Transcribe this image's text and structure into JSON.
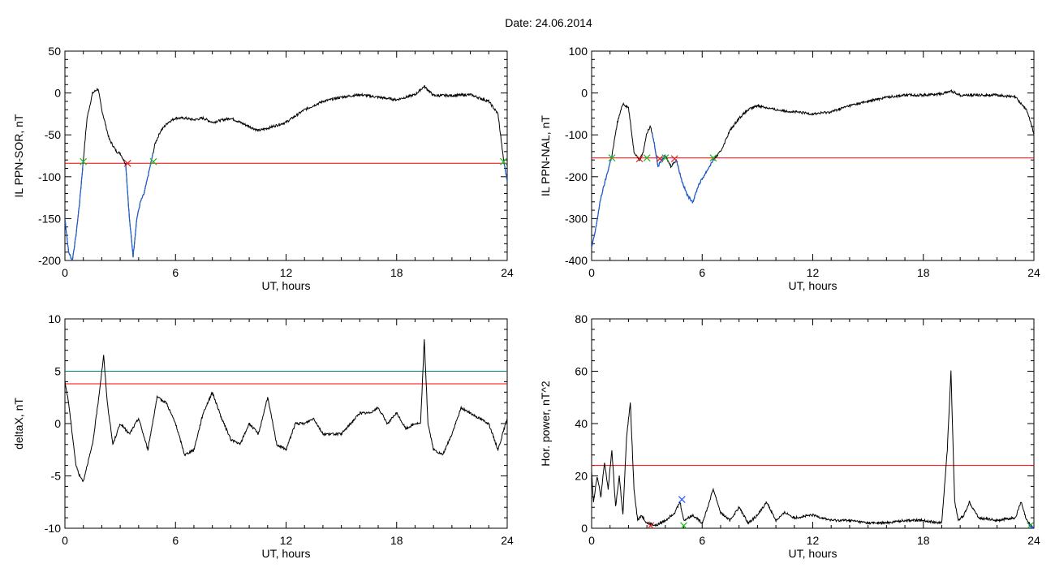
{
  "title": "Date:  24.06.2014",
  "colors": {
    "line": "#000000",
    "threshold": "#ff0000",
    "threshold2": "#008080",
    "highlight": "#1f5fcf",
    "mark_green": "#22bb22",
    "mark_red": "#dd2222",
    "mark_blue": "#2255ff"
  },
  "chart_data": [
    {
      "type": "line",
      "xlabel": "UT, hours",
      "ylabel": "IL PPN-SOR, nT",
      "xlim": [
        0,
        24
      ],
      "ylim": [
        -200,
        50
      ],
      "xticks": [
        0,
        6,
        12,
        18,
        24
      ],
      "xtick_labels": [
        "0",
        "6",
        "12",
        "18",
        "24"
      ],
      "yticks": [
        -200,
        -150,
        -100,
        -50,
        0,
        50
      ],
      "ytick_labels": [
        "-200",
        "-150",
        "-100",
        "-50",
        "0",
        "50"
      ],
      "thresholds": [
        {
          "y": -84,
          "color": "#ff0000"
        }
      ],
      "series": [
        {
          "x": [
            0,
            0.2,
            0.4,
            0.6,
            0.8,
            1.0,
            1.2,
            1.5,
            1.8,
            2.0,
            2.4,
            2.8,
            3.0,
            3.3,
            3.5,
            3.7,
            3.9,
            4.1,
            4.3,
            4.5,
            4.7,
            4.9,
            5.2,
            5.6,
            6.0,
            6.5,
            7.0,
            7.5,
            8.0,
            9.0,
            10.0,
            10.5,
            11.0,
            12.0,
            13.0,
            14.0,
            15.0,
            16.0,
            17.0,
            18.0,
            19.0,
            19.5,
            20.0,
            21.0,
            22.0,
            23.0,
            23.5,
            23.8,
            24.0
          ],
          "y": [
            -150,
            -190,
            -200,
            -170,
            -130,
            -80,
            -30,
            0,
            5,
            -20,
            -55,
            -70,
            -72,
            -85,
            -150,
            -195,
            -150,
            -130,
            -120,
            -100,
            -80,
            -60,
            -45,
            -35,
            -30,
            -30,
            -32,
            -30,
            -35,
            -30,
            -40,
            -45,
            -42,
            -35,
            -20,
            -10,
            -5,
            -2,
            -5,
            -8,
            -2,
            8,
            -3,
            -3,
            -2,
            -10,
            -25,
            -80,
            -105
          ]
        }
      ],
      "marks": [
        {
          "x": 1.0,
          "y": -82,
          "color": "#22bb22"
        },
        {
          "x": 3.4,
          "y": -84,
          "color": "#dd2222"
        },
        {
          "x": 4.8,
          "y": -82,
          "color": "#22bb22"
        },
        {
          "x": 23.8,
          "y": -82,
          "color": "#22bb22"
        }
      ],
      "highlight": [
        [
          0,
          1.0
        ],
        [
          3.3,
          4.8
        ],
        [
          23.8,
          24
        ]
      ]
    },
    {
      "type": "line",
      "xlabel": "UT, hours",
      "ylabel": "IL PPN-NAL, nT",
      "xlim": [
        0,
        24
      ],
      "ylim": [
        -400,
        100
      ],
      "xticks": [
        0,
        6,
        12,
        18,
        24
      ],
      "xtick_labels": [
        "0",
        "6",
        "12",
        "18",
        "24"
      ],
      "yticks": [
        -400,
        -300,
        -200,
        -100,
        0,
        100
      ],
      "ytick_labels": [
        "-400",
        "-300",
        "-200",
        "-100",
        "0",
        "100"
      ],
      "thresholds": [
        {
          "y": -155,
          "color": "#ff0000"
        }
      ],
      "series": [
        {
          "x": [
            0,
            0.2,
            0.5,
            0.8,
            1.1,
            1.4,
            1.7,
            2.0,
            2.3,
            2.6,
            2.8,
            3.0,
            3.2,
            3.4,
            3.6,
            3.8,
            4.0,
            4.3,
            4.6,
            4.9,
            5.2,
            5.5,
            5.8,
            6.2,
            6.6,
            7.0,
            7.5,
            8.0,
            8.5,
            9.0,
            10.0,
            11.0,
            12.0,
            13.0,
            14.0,
            15.0,
            16.0,
            17.0,
            18.0,
            19.0,
            19.5,
            20.0,
            21.0,
            22.0,
            23.0,
            23.6,
            23.9,
            24.0
          ],
          "y": [
            -370,
            -330,
            -250,
            -200,
            -150,
            -70,
            -25,
            -35,
            -140,
            -160,
            -140,
            -95,
            -80,
            -120,
            -175,
            -160,
            -150,
            -175,
            -160,
            -210,
            -245,
            -260,
            -220,
            -190,
            -160,
            -140,
            -90,
            -60,
            -40,
            -30,
            -40,
            -45,
            -50,
            -45,
            -30,
            -20,
            -10,
            -5,
            -5,
            -2,
            5,
            -5,
            -5,
            -5,
            -10,
            -40,
            -80,
            -100
          ]
        }
      ],
      "marks": [
        {
          "x": 1.1,
          "y": -155,
          "color": "#22bb22"
        },
        {
          "x": 2.6,
          "y": -157,
          "color": "#dd2222"
        },
        {
          "x": 3.0,
          "y": -155,
          "color": "#22bb22"
        },
        {
          "x": 3.7,
          "y": -157,
          "color": "#dd2222"
        },
        {
          "x": 4.0,
          "y": -155,
          "color": "#22bb22"
        },
        {
          "x": 4.5,
          "y": -157,
          "color": "#dd2222"
        },
        {
          "x": 6.6,
          "y": -155,
          "color": "#22bb22"
        }
      ],
      "highlight": [
        [
          0,
          1.1
        ],
        [
          3.3,
          4.0
        ],
        [
          4.5,
          6.6
        ]
      ]
    },
    {
      "type": "line",
      "xlabel": "UT, hours",
      "ylabel": "deltaX, nT",
      "xlim": [
        0,
        24
      ],
      "ylim": [
        -10,
        10
      ],
      "xticks": [
        0,
        6,
        12,
        18,
        24
      ],
      "xtick_labels": [
        "0",
        "6",
        "12",
        "18",
        "24"
      ],
      "yticks": [
        -10,
        -5,
        0,
        5,
        10
      ],
      "ytick_labels": [
        "-10",
        "-5",
        "0",
        "5",
        "10"
      ],
      "thresholds": [
        {
          "y": 5.0,
          "color": "#008080"
        },
        {
          "y": 3.8,
          "color": "#ff0000"
        }
      ],
      "series": [
        {
          "x": [
            0,
            0.2,
            0.4,
            0.6,
            0.8,
            1.0,
            1.2,
            1.5,
            1.8,
            2.1,
            2.3,
            2.6,
            3.0,
            3.5,
            4.0,
            4.5,
            5.0,
            5.5,
            6.0,
            6.5,
            7.0,
            7.5,
            8.0,
            8.5,
            9.0,
            9.5,
            10.0,
            10.5,
            11.0,
            11.5,
            12.0,
            12.5,
            13.0,
            13.5,
            14.0,
            14.5,
            15.0,
            15.5,
            16.0,
            16.5,
            17.0,
            17.5,
            18.0,
            18.5,
            19.0,
            19.3,
            19.5,
            19.7,
            20.0,
            20.5,
            21.0,
            21.5,
            22.0,
            22.5,
            23.0,
            23.5,
            24.0
          ],
          "y": [
            4,
            2,
            -1,
            -4,
            -5,
            -5.5,
            -4,
            -2,
            2,
            6.5,
            2,
            -2,
            0,
            -1,
            0.5,
            -2.5,
            2.5,
            2,
            0,
            -3,
            -2.5,
            1,
            3,
            0.5,
            -1.5,
            -2,
            0,
            -1,
            2.5,
            -2,
            -2.5,
            0,
            0,
            0.5,
            -1,
            -1,
            -1,
            0,
            1,
            1,
            1.5,
            0,
            1,
            -0.5,
            0,
            0,
            8,
            0,
            -2.5,
            -3,
            -1,
            1.5,
            1,
            0.5,
            0,
            -2.5,
            0.5
          ]
        }
      ],
      "marks": [],
      "highlight": []
    },
    {
      "type": "line",
      "xlabel": "UT, hours",
      "ylabel": "Hor. power, nT^2",
      "xlim": [
        0,
        24
      ],
      "ylim": [
        0,
        80
      ],
      "xticks": [
        0,
        6,
        12,
        18,
        24
      ],
      "xtick_labels": [
        "0",
        "6",
        "12",
        "18",
        "24"
      ],
      "yticks": [
        0,
        20,
        40,
        60,
        80
      ],
      "ytick_labels": [
        "0",
        "20",
        "40",
        "60",
        "80"
      ],
      "thresholds": [
        {
          "y": 24,
          "color": "#ff0000"
        }
      ],
      "series": [
        {
          "x": [
            0,
            0.1,
            0.3,
            0.5,
            0.7,
            0.9,
            1.1,
            1.3,
            1.5,
            1.7,
            1.9,
            2.1,
            2.3,
            2.5,
            2.7,
            3.0,
            3.5,
            4.0,
            4.5,
            4.8,
            5.0,
            5.5,
            6.0,
            6.3,
            6.6,
            7.0,
            7.5,
            8.0,
            8.5,
            9.0,
            9.5,
            10.0,
            10.5,
            11.0,
            12.0,
            13.0,
            14.0,
            15.0,
            16.0,
            17.0,
            18.0,
            19.0,
            19.3,
            19.5,
            19.7,
            19.9,
            20.2,
            20.5,
            21.0,
            22.0,
            23.0,
            23.3,
            23.6,
            24.0
          ],
          "y": [
            22,
            10,
            20,
            12,
            25,
            15,
            30,
            8,
            20,
            5,
            35,
            48,
            15,
            3,
            5,
            2,
            1,
            3,
            6,
            10,
            3,
            5,
            2,
            8,
            15,
            6,
            3,
            8,
            2,
            5,
            10,
            3,
            6,
            4,
            5,
            3,
            3,
            2,
            2,
            3,
            3,
            2,
            30,
            60,
            10,
            3,
            5,
            10,
            4,
            3,
            4,
            10,
            3,
            0
          ]
        }
      ],
      "marks": [
        {
          "x": 3.2,
          "y": 1,
          "color": "#dd2222"
        },
        {
          "x": 4.9,
          "y": 11,
          "color": "#2255ff"
        },
        {
          "x": 5.0,
          "y": 1,
          "color": "#22bb22"
        },
        {
          "x": 23.8,
          "y": 1,
          "color": "#22bb22"
        },
        {
          "x": 23.9,
          "y": 0,
          "color": "#2255ff"
        }
      ],
      "highlight": []
    }
  ]
}
